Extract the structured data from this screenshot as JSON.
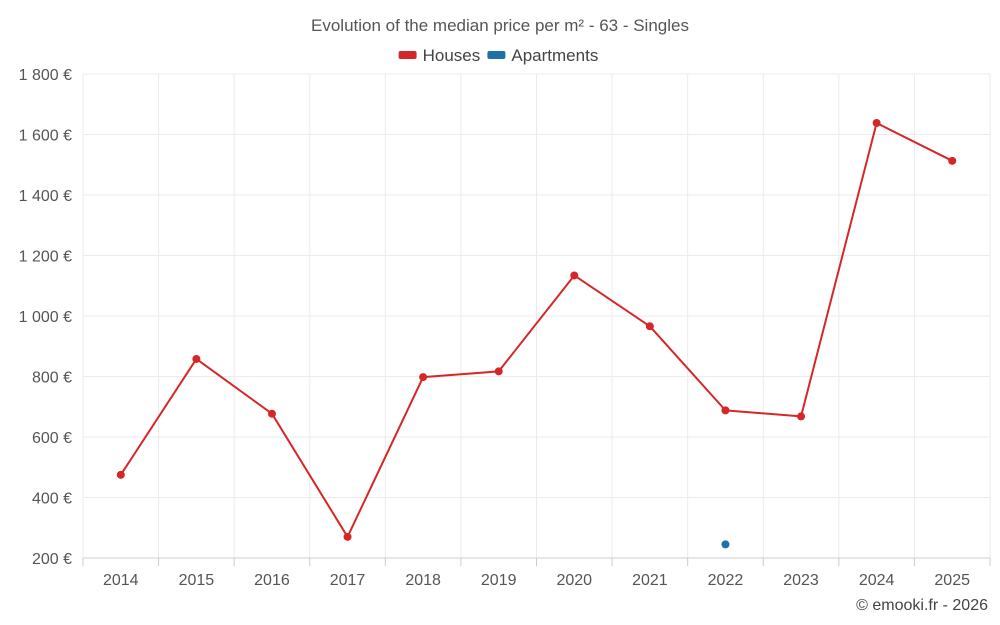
{
  "chart_data": {
    "type": "line",
    "title": "Evolution of the median price per m² - 63 - Singles",
    "categories": [
      "2014",
      "2015",
      "2016",
      "2017",
      "2018",
      "2019",
      "2020",
      "2021",
      "2022",
      "2023",
      "2024",
      "2025"
    ],
    "series": [
      {
        "name": "Houses",
        "color": "#d62728",
        "values": [
          475,
          858,
          677,
          270,
          798,
          817,
          1134,
          966,
          688,
          668,
          1638,
          1513
        ]
      },
      {
        "name": "Apartments",
        "color": "#1f6fa8",
        "values": [
          null,
          null,
          null,
          null,
          null,
          null,
          null,
          null,
          245,
          null,
          null,
          null
        ]
      }
    ],
    "ylim": [
      200,
      1800
    ],
    "yticks": [
      200,
      400,
      600,
      800,
      1000,
      1200,
      1400,
      1600,
      1800
    ],
    "ytick_labels": [
      "200 €",
      "400 €",
      "600 €",
      "800 €",
      "1 000 €",
      "1 200 €",
      "1 400 €",
      "1 600 €",
      "1 800 €"
    ],
    "xlabel": "",
    "ylabel": "",
    "grid": true,
    "legend_position": "top-center",
    "credit": "© emooki.fr - 2026"
  }
}
